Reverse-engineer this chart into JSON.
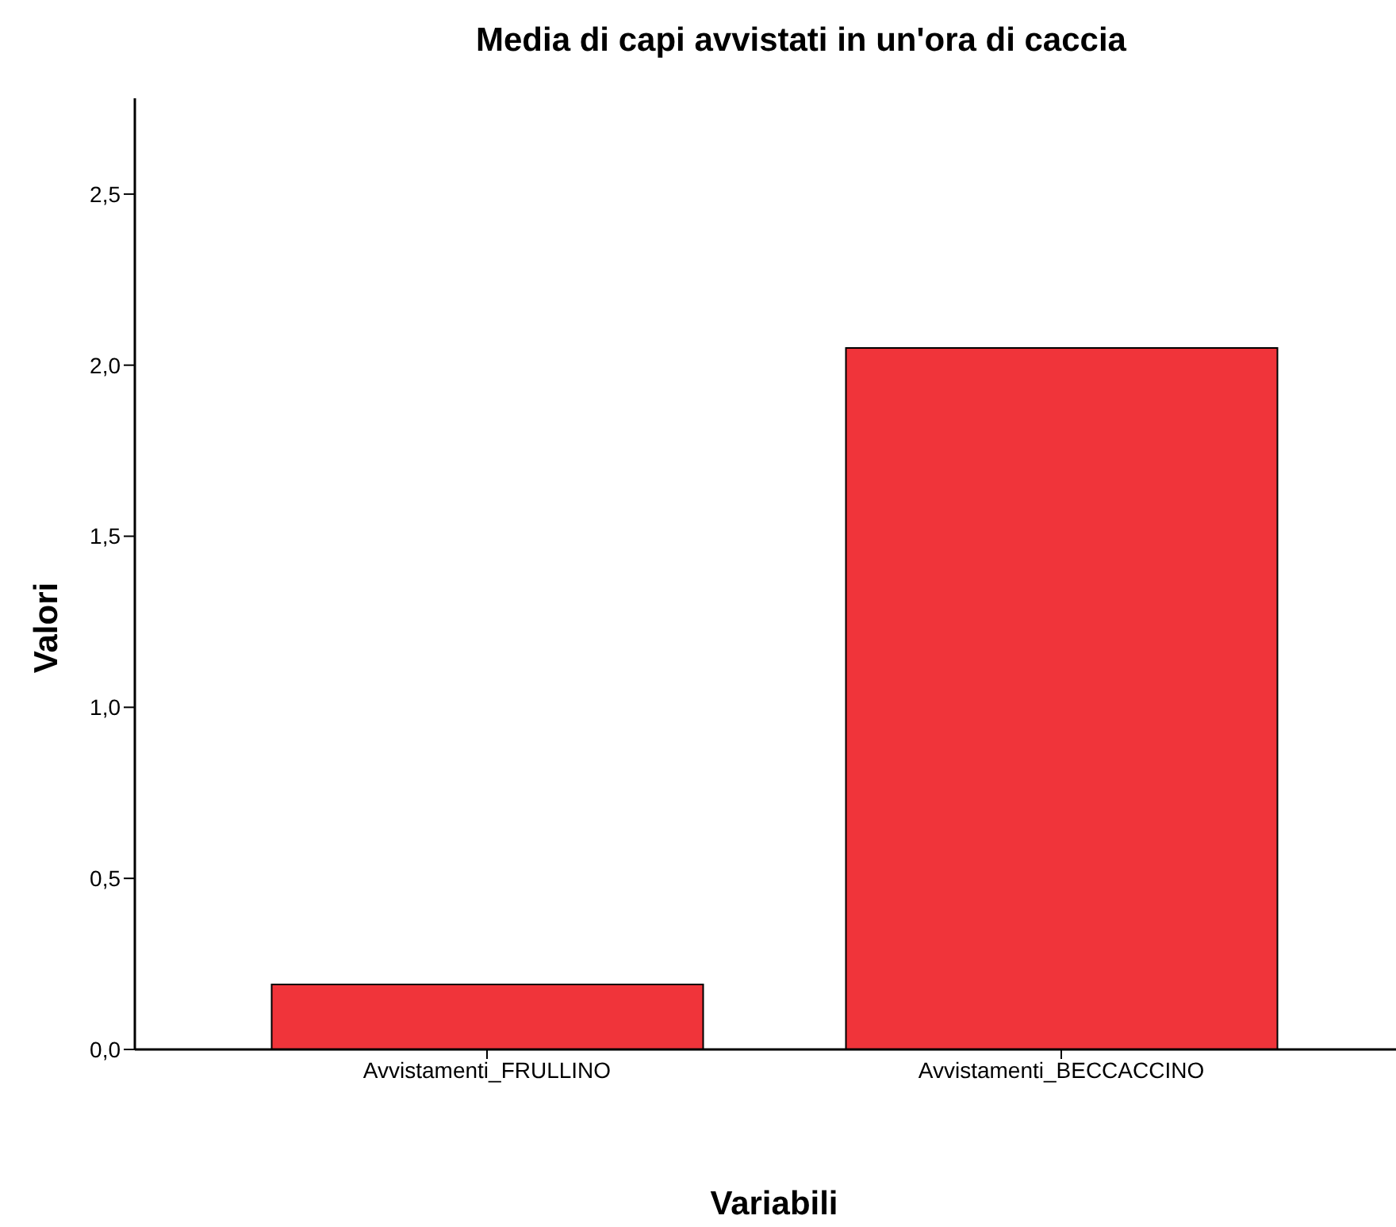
{
  "chart_data": {
    "type": "bar",
    "title": "Media di capi avvistati in un'ora di caccia",
    "xlabel": "Variabili",
    "ylabel": "Valori",
    "categories": [
      "Avvistamenti_FRULLINO",
      "Avvistamenti_BECCACCINO"
    ],
    "values": [
      0.19,
      2.05
    ],
    "color": "#f0343a",
    "ylim": [
      0,
      2.78
    ],
    "yticks": [
      {
        "value": 0,
        "label": "0,0"
      },
      {
        "value": 0.5,
        "label": "0,5"
      },
      {
        "value": 1,
        "label": "1,0"
      },
      {
        "value": 1.5,
        "label": "1,5"
      },
      {
        "value": 2,
        "label": "2,0"
      },
      {
        "value": 2.5,
        "label": "2,5"
      }
    ],
    "grid": false,
    "legend": false
  }
}
